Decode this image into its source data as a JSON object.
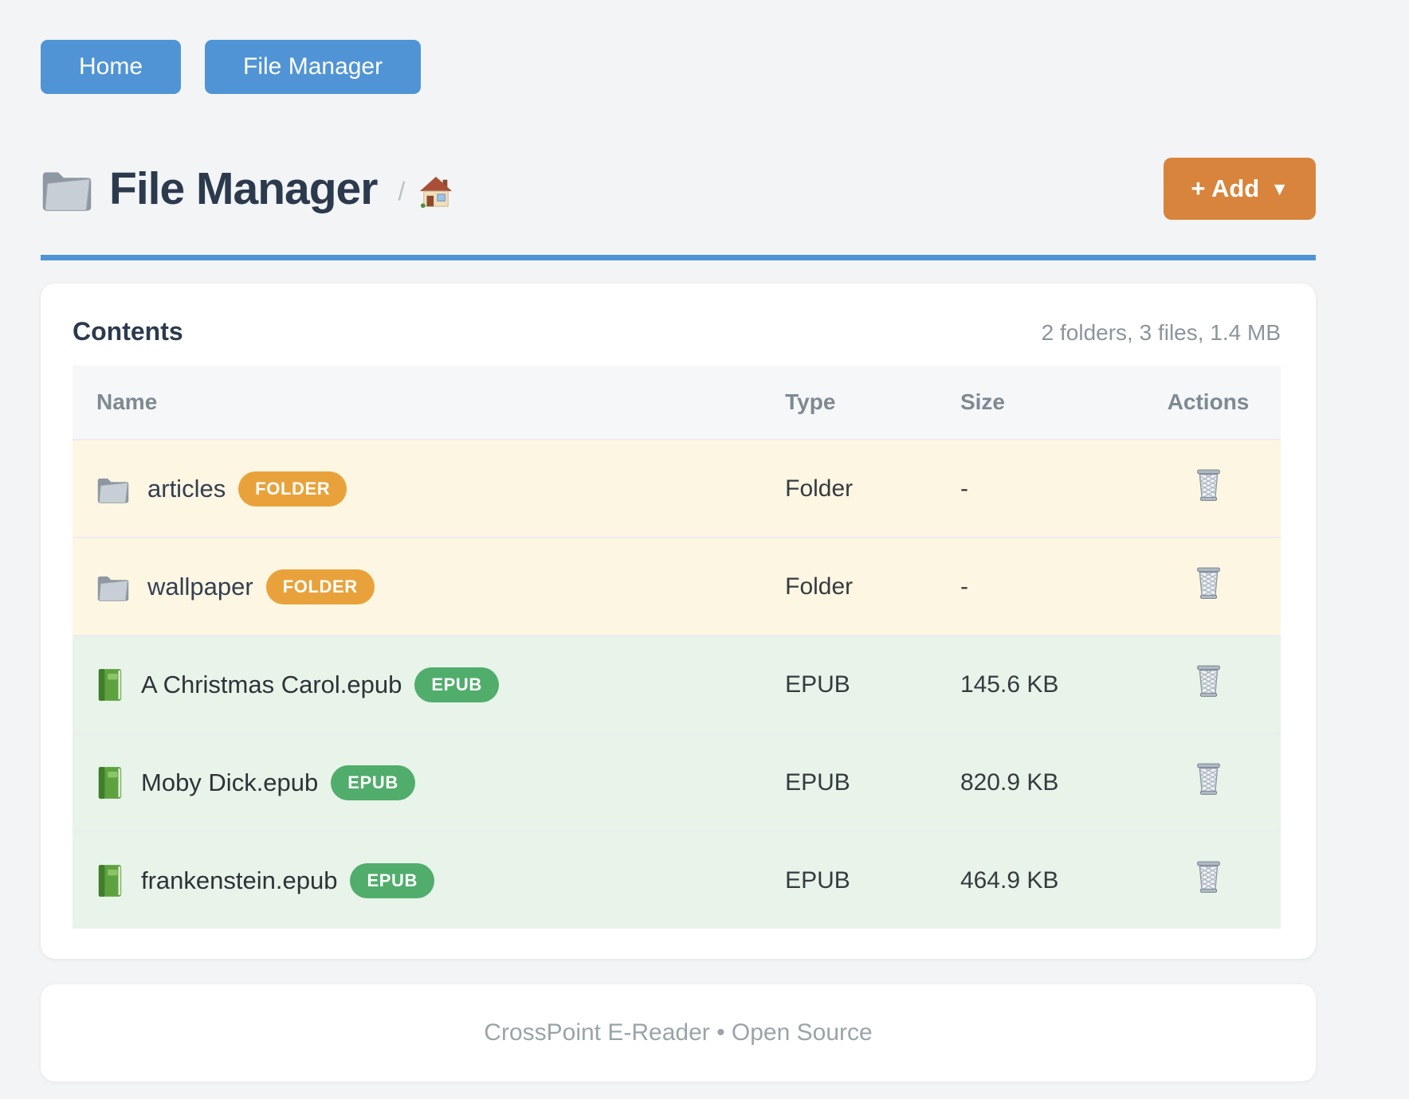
{
  "nav": {
    "home_label": "Home",
    "file_manager_label": "File Manager"
  },
  "header": {
    "title": "File Manager",
    "breadcrumb_separator": "/",
    "add_button": {
      "label": "+ Add",
      "caret": "▼"
    }
  },
  "contents": {
    "heading": "Contents",
    "summary": "2 folders, 3 files, 1.4 MB",
    "table": {
      "columns": [
        "Name",
        "Type",
        "Size",
        "Actions"
      ],
      "rows": [
        {
          "name": "articles",
          "kind": "folder",
          "badge": "FOLDER",
          "type": "Folder",
          "size": "-"
        },
        {
          "name": "wallpaper",
          "kind": "folder",
          "badge": "FOLDER",
          "type": "Folder",
          "size": "-"
        },
        {
          "name": "A Christmas Carol.epub",
          "kind": "epub",
          "badge": "EPUB",
          "type": "EPUB",
          "size": "145.6 KB"
        },
        {
          "name": "Moby Dick.epub",
          "kind": "epub",
          "badge": "EPUB",
          "type": "EPUB",
          "size": "820.9 KB"
        },
        {
          "name": "frankenstein.epub",
          "kind": "epub",
          "badge": "EPUB",
          "type": "EPUB",
          "size": "464.9 KB"
        }
      ]
    }
  },
  "footer": {
    "text": "CrossPoint E-Reader • Open Source"
  },
  "colors": {
    "nav_button": "#5094d6",
    "add_button": "#d8843c",
    "divider": "#4f94d4",
    "folder_badge": "#e9a23b",
    "epub_badge": "#50ad6b",
    "folder_row_bg": "#fdf6e2",
    "epub_row_bg": "#e8f3e9"
  }
}
